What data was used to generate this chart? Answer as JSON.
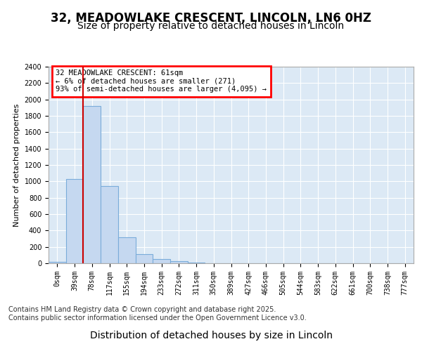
{
  "title1": "32, MEADOWLAKE CRESCENT, LINCOLN, LN6 0HZ",
  "title2": "Size of property relative to detached houses in Lincoln",
  "xlabel": "Distribution of detached houses by size in Lincoln",
  "ylabel": "Number of detached properties",
  "bin_labels": [
    "0sqm",
    "39sqm",
    "78sqm",
    "117sqm",
    "155sqm",
    "194sqm",
    "233sqm",
    "272sqm",
    "311sqm",
    "350sqm",
    "389sqm",
    "427sqm",
    "466sqm",
    "505sqm",
    "544sqm",
    "583sqm",
    "622sqm",
    "661sqm",
    "700sqm",
    "738sqm",
    "777sqm"
  ],
  "bar_values": [
    15,
    1025,
    1920,
    940,
    320,
    108,
    55,
    30,
    5,
    0,
    0,
    0,
    0,
    0,
    0,
    0,
    0,
    0,
    0,
    0,
    0
  ],
  "bar_color": "#c5d8f0",
  "bar_edge_color": "#7aacda",
  "annotation_text": "32 MEADOWLAKE CRESCENT: 61sqm\n← 6% of detached houses are smaller (271)\n93% of semi-detached houses are larger (4,095) →",
  "vline_color": "#cc0000",
  "ylim": [
    0,
    2400
  ],
  "yticks": [
    0,
    200,
    400,
    600,
    800,
    1000,
    1200,
    1400,
    1600,
    1800,
    2000,
    2200,
    2400
  ],
  "bg_color": "#dce9f5",
  "grid_color": "#ffffff",
  "footer_text": "Contains HM Land Registry data © Crown copyright and database right 2025.\nContains public sector information licensed under the Open Government Licence v3.0.",
  "title1_fontsize": 12,
  "title2_fontsize": 10,
  "ylabel_fontsize": 8,
  "xlabel_fontsize": 10,
  "tick_fontsize": 7,
  "footer_fontsize": 7
}
